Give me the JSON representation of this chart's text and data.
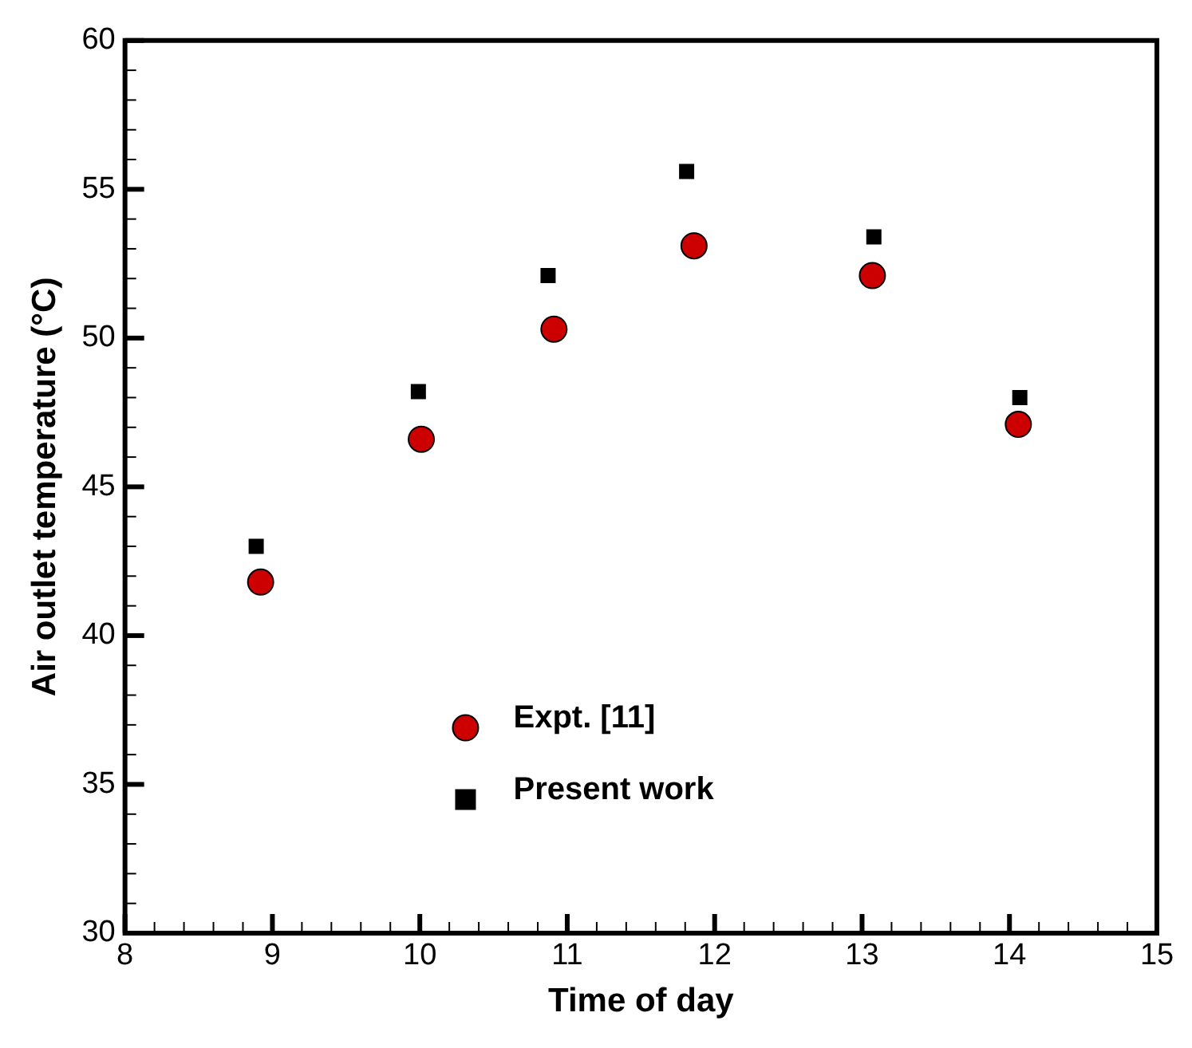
{
  "chart_data": {
    "type": "scatter",
    "xlabel": "Time of day",
    "ylabel": "Air outlet temperature (°C)",
    "series": [
      {
        "name": "Expt. [11]",
        "color": "#cc0000",
        "marker": "circle",
        "x": [
          8.92,
          10.01,
          10.91,
          11.86,
          13.07,
          14.06
        ],
        "values": [
          41.8,
          46.6,
          50.3,
          53.1,
          52.1,
          47.1
        ]
      },
      {
        "name": "Present work",
        "color": "#000000",
        "marker": "square",
        "x": [
          8.89,
          9.99,
          10.87,
          11.81,
          13.08,
          14.07
        ],
        "values": [
          43.0,
          48.2,
          52.1,
          55.6,
          53.4,
          48.0
        ]
      }
    ],
    "xlim": [
      8,
      15
    ],
    "xticks": [
      8,
      9,
      10,
      11,
      12,
      13,
      14,
      15
    ],
    "ylim": [
      30,
      60
    ],
    "yticks": [
      30,
      35,
      40,
      45,
      50,
      55,
      60
    ],
    "grid": false,
    "legend": "bottom"
  }
}
